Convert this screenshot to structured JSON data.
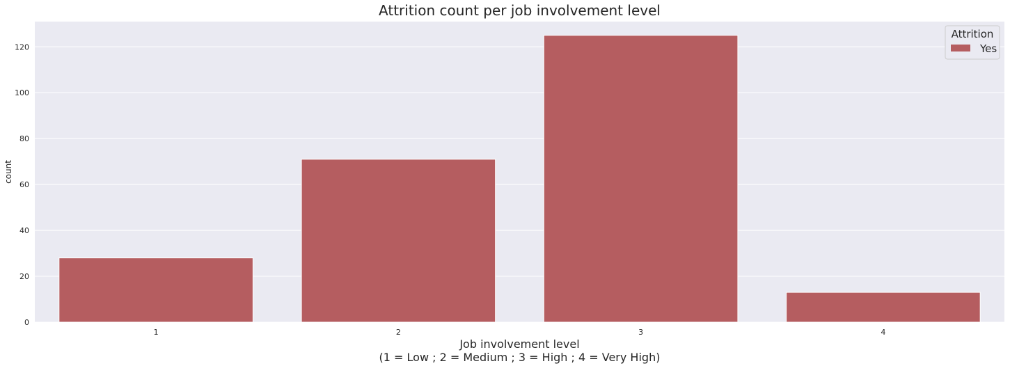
{
  "chart_data": {
    "type": "bar",
    "title": "Attrition count per job involvement level",
    "xlabel_line1": "Job involvement level",
    "xlabel_line2": "(1 = Low ; 2 = Medium ; 3 = High ; 4 = Very High)",
    "ylabel": "count",
    "categories": [
      "1",
      "2",
      "3",
      "4"
    ],
    "series": [
      {
        "name": "Yes",
        "values": [
          28,
          71,
          125,
          13
        ],
        "color": "#b55d60"
      }
    ],
    "ylim": [
      0,
      131
    ],
    "yticks": [
      0,
      20,
      40,
      60,
      80,
      100,
      120
    ],
    "legend": {
      "title": "Attrition",
      "position": "top-right"
    },
    "grid": true,
    "background": "#eaeaf2"
  }
}
